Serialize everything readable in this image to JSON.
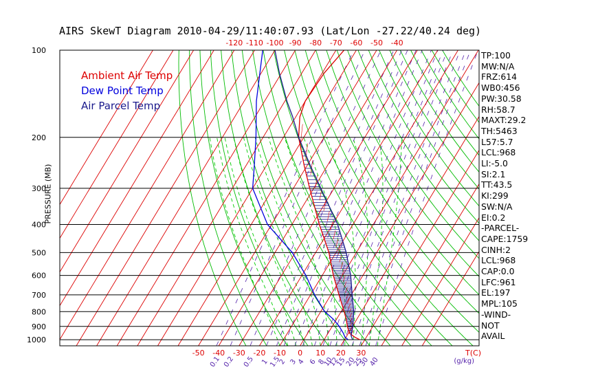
{
  "title": "AIRS SkewT Diagram 2010-04-29/11:40:07.93 (Lat/Lon -27.22/40.24 deg)",
  "legend": {
    "ambient": "Ambient Air Temp",
    "dewpoint": "Dew Point Temp",
    "parcel": "Air Parcel Temp"
  },
  "colors": {
    "ambient": "#dd0000",
    "dewpoint": "#0000dd",
    "parcel": "#1a1a8c",
    "isotherms": "#dd0000",
    "dry_adiabats": "#00bb00",
    "moist_adiabats": "#00cc00",
    "mixing_ratio": "#5522aa"
  },
  "params": [
    "TP:100",
    "MW:N/A",
    "FRZ:614",
    "WB0:456",
    "PW:30.58",
    "RH:58.7",
    "MAXT:29.2",
    "TH:5463",
    "L57:5.7",
    "LCL:968",
    "LI:-5.0",
    "SI:2.1",
    "TT:43.5",
    "KI:299",
    "SW:N/A",
    "EI:0.2",
    "-PARCEL-",
    "CAPE:1759",
    "CINH:2",
    "LCL:968",
    "CAP:0.0",
    "LFC:961",
    "EL:197",
    "MPL:105",
    "-WIND-",
    " NOT",
    "AVAIL"
  ],
  "chart_data": {
    "type": "line",
    "title": "AIRS SkewT Diagram 2010-04-29/11:40:07.93 (Lat/Lon -27.22/40.24 deg)",
    "ylabel": "PRESSURE (MB)",
    "y_scale": "log",
    "ylim": [
      1050,
      100
    ],
    "pressure_ticks": [
      100,
      200,
      300,
      400,
      500,
      600,
      700,
      800,
      900,
      1000
    ],
    "top_temp_ticks": [
      -120,
      -110,
      -100,
      -90,
      -80,
      -70,
      -60,
      -50,
      -40
    ],
    "bottom_temp_ticks": [
      -50,
      -40,
      -30,
      -20,
      -10,
      0,
      10,
      20,
      30
    ],
    "bottom_temp_unit": "T(C)",
    "mixing_ratio_ticks": [
      "0.1",
      "0.2",
      "0.5",
      "1",
      "1.5",
      "2",
      "3",
      "4",
      "6",
      "8",
      "10",
      "12",
      "15",
      "20",
      "25",
      "30",
      "40"
    ],
    "mixing_ratio_unit": "(g/kg)",
    "series": [
      {
        "name": "Ambient Air Temp",
        "p": [
          1000,
          980,
          950,
          900,
          850,
          800,
          700,
          600,
          500,
          400,
          300,
          250,
          200,
          170,
          150,
          120,
          100
        ],
        "t": [
          27.5,
          24.3,
          20.5,
          17.5,
          14.8,
          11.5,
          4.0,
          -4.5,
          -13.5,
          -26.5,
          -42.0,
          -51.5,
          -62.5,
          -68.0,
          -70.0,
          -69.0,
          -66.0
        ]
      },
      {
        "name": "Dew Point Temp",
        "p": [
          1000,
          980,
          950,
          900,
          850,
          800,
          700,
          600,
          500,
          400,
          300,
          250,
          200,
          150,
          100
        ],
        "t": [
          21.8,
          19.5,
          17.5,
          13.5,
          8.5,
          2.0,
          -8.0,
          -18.0,
          -31.5,
          -52.0,
          -70.0,
          -76.0,
          -83.5,
          -94.0,
          -106.0
        ]
      },
      {
        "name": "Air Parcel Temp",
        "p": [
          1000,
          968,
          900,
          800,
          700,
          600,
          500,
          400,
          300,
          250,
          200,
          170,
          150,
          120,
          100
        ],
        "t": [
          24.0,
          22.0,
          20.2,
          16.2,
          10.5,
          4.0,
          -5.0,
          -17.5,
          -36.5,
          -48.5,
          -62.5,
          -71.5,
          -79.0,
          -91.0,
          -100.0
        ]
      }
    ]
  }
}
